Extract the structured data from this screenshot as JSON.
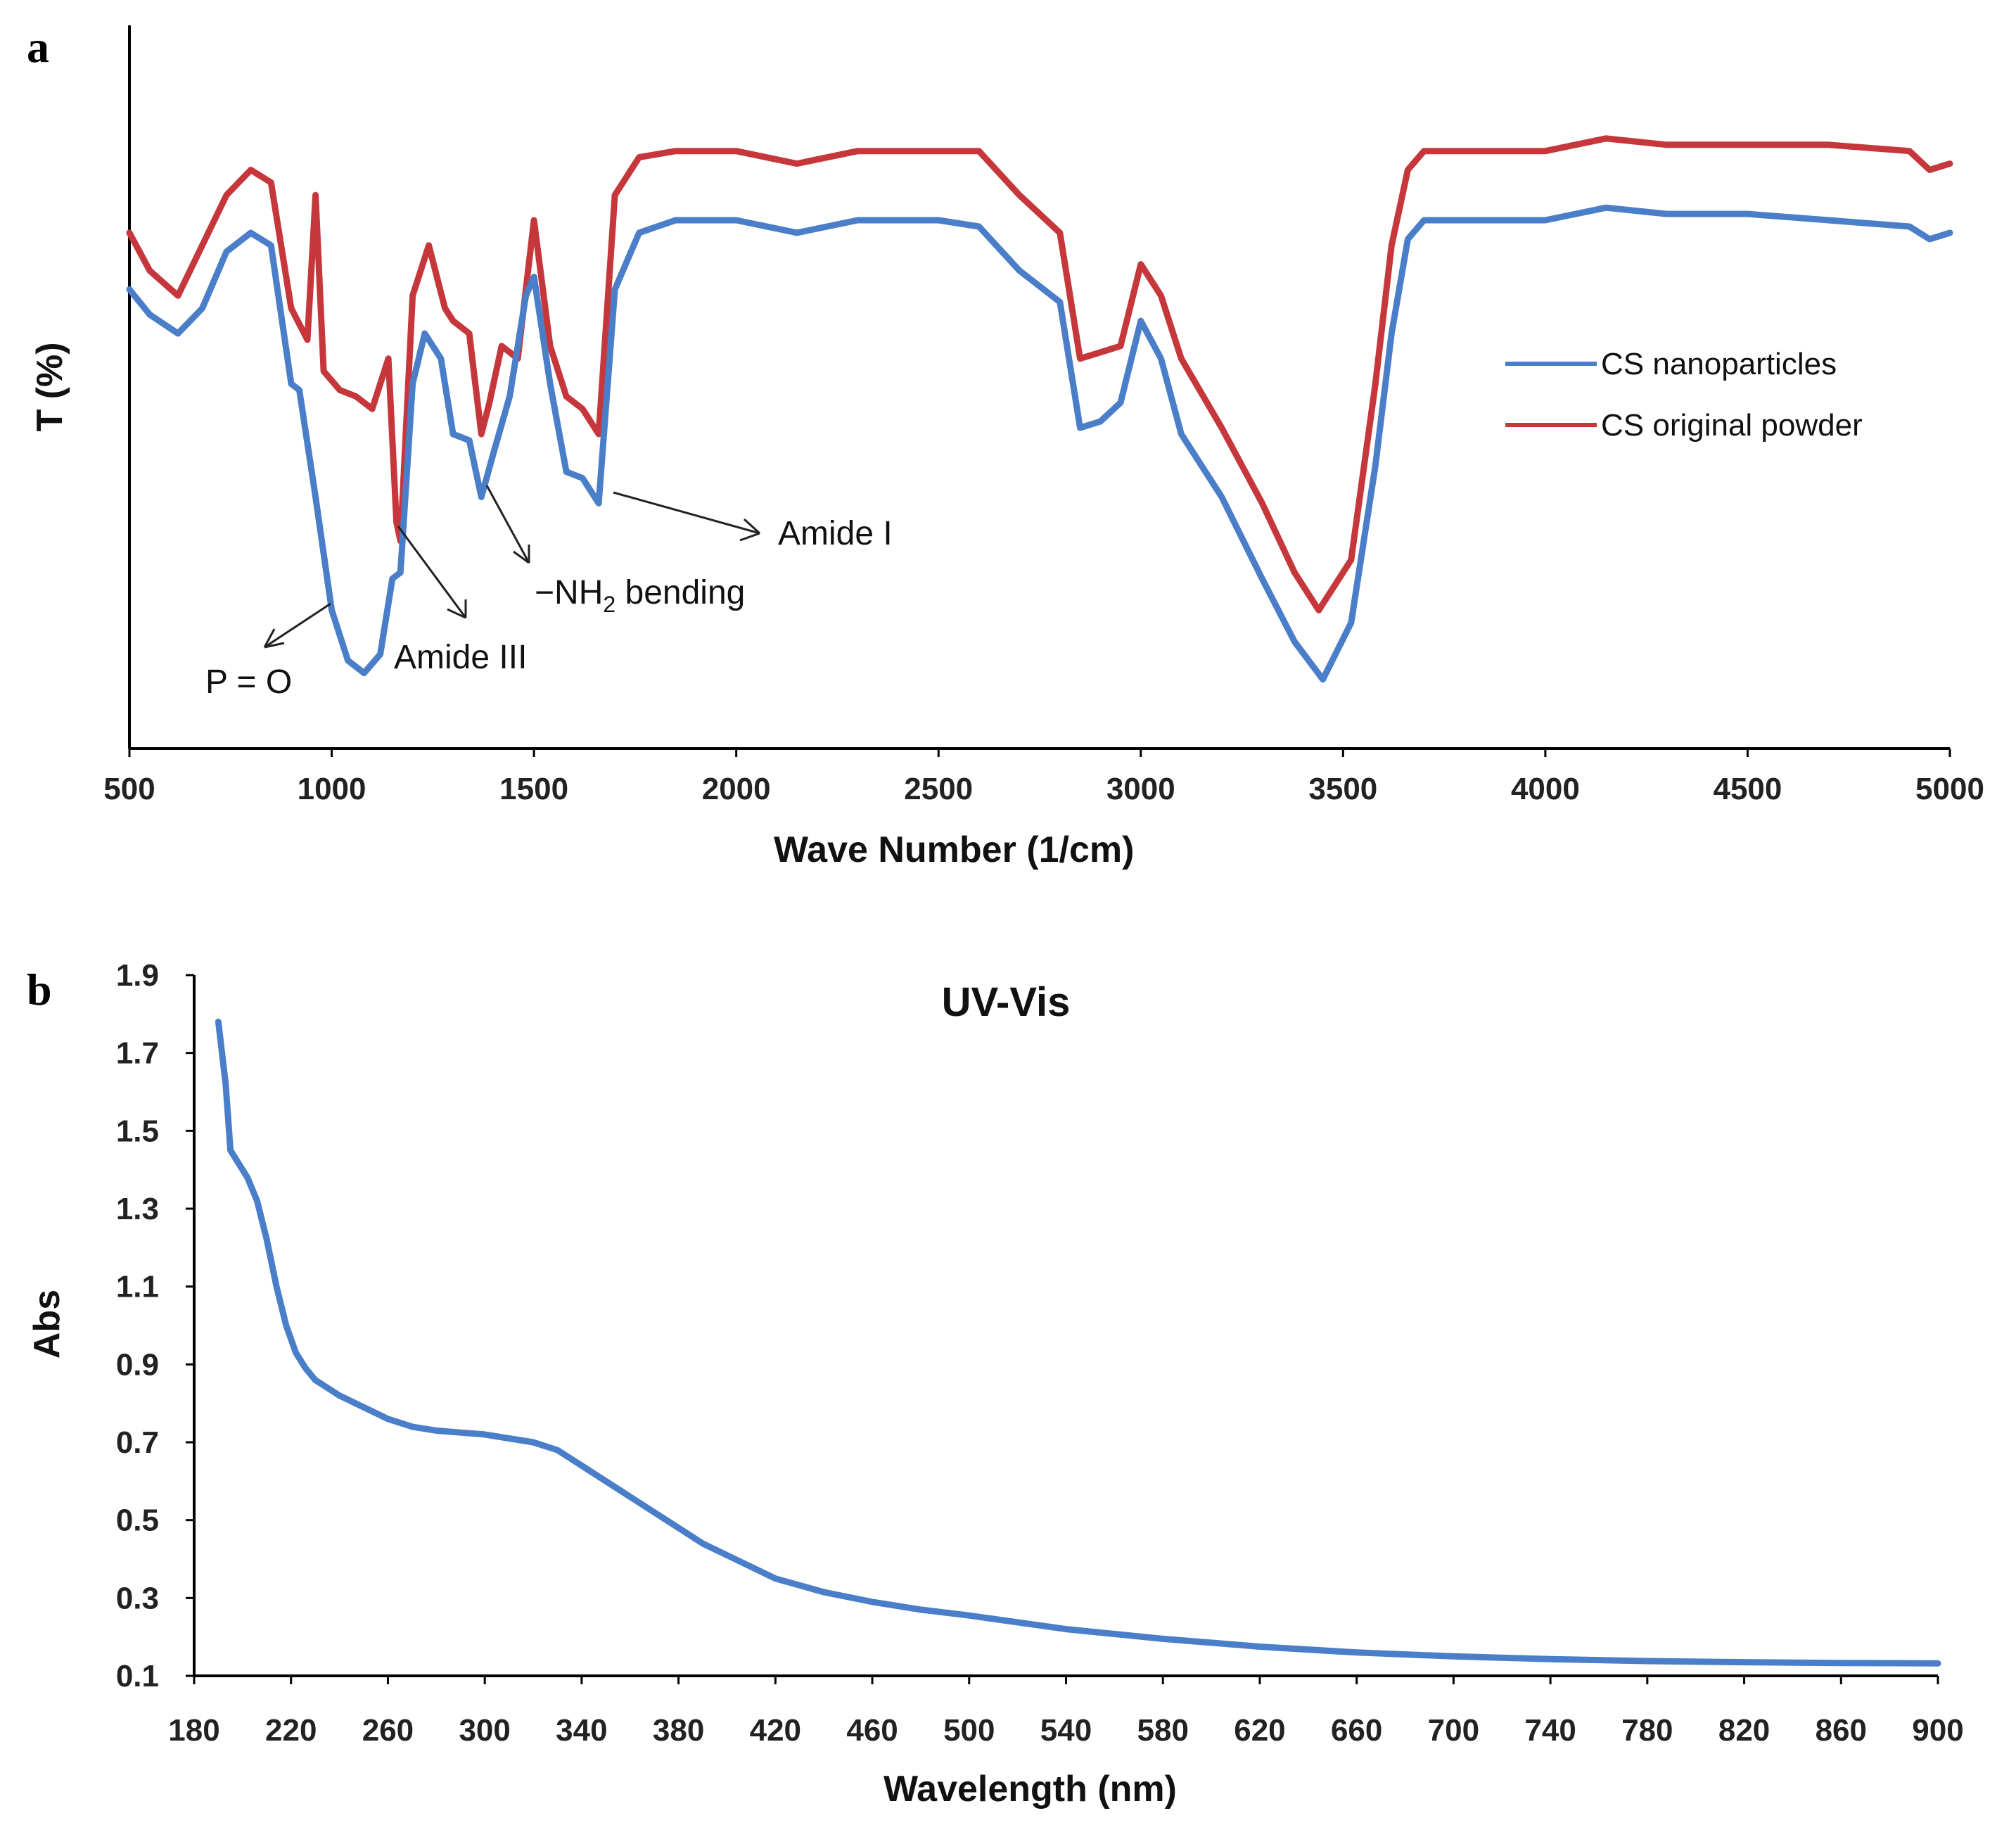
{
  "chart_data": [
    {
      "panel_label": "a",
      "type": "line",
      "xlabel": "Wave Number (1/cm)",
      "ylabel": "T (%)",
      "xlim": [
        500,
        5000
      ],
      "ylim": [
        0,
        100
      ],
      "x_ticks": [
        500,
        1000,
        1500,
        2000,
        2500,
        3000,
        3500,
        4000,
        4500,
        5000
      ],
      "y_ticks_shown": false,
      "legend_position": "right-middle",
      "series": [
        {
          "name": "CS nanoparticles",
          "color": "#4a7ec9",
          "x": [
            500,
            550,
            620,
            680,
            740,
            800,
            850,
            900,
            920,
            960,
            1000,
            1040,
            1080,
            1120,
            1150,
            1170,
            1200,
            1230,
            1270,
            1300,
            1340,
            1370,
            1400,
            1440,
            1480,
            1500,
            1540,
            1580,
            1620,
            1660,
            1700,
            1760,
            1850,
            2000,
            2150,
            2300,
            2500,
            2600,
            2700,
            2800,
            2850,
            2900,
            2950,
            3000,
            3050,
            3100,
            3200,
            3300,
            3380,
            3450,
            3520,
            3580,
            3620,
            3660,
            3700,
            3800,
            4000,
            4150,
            4300,
            4500,
            4700,
            4900,
            4950,
            5000
          ],
          "y": [
            73,
            69,
            66,
            70,
            79,
            82,
            80,
            58,
            57,
            40,
            22,
            14,
            12,
            15,
            27,
            28,
            58,
            66,
            62,
            50,
            49,
            40,
            47,
            56,
            72,
            75,
            58,
            44,
            43,
            39,
            73,
            82,
            84,
            84,
            82,
            84,
            84,
            83,
            76,
            71,
            51,
            52,
            55,
            68,
            62,
            50,
            40,
            27,
            17,
            11,
            20,
            45,
            66,
            81,
            84,
            84,
            84,
            86,
            85,
            85,
            84,
            83,
            81,
            82
          ]
        },
        {
          "name": "CS original powder",
          "color": "#c6373b",
          "x": [
            500,
            550,
            620,
            680,
            740,
            800,
            850,
            900,
            940,
            960,
            980,
            1020,
            1060,
            1100,
            1140,
            1160,
            1170,
            1200,
            1240,
            1280,
            1300,
            1340,
            1370,
            1390,
            1420,
            1460,
            1500,
            1540,
            1580,
            1620,
            1660,
            1700,
            1760,
            1850,
            2000,
            2150,
            2300,
            2500,
            2600,
            2700,
            2800,
            2850,
            2900,
            2950,
            3000,
            3050,
            3100,
            3200,
            3300,
            3380,
            3440,
            3520,
            3580,
            3620,
            3660,
            3700,
            3800,
            4000,
            4150,
            4300,
            4500,
            4700,
            4900,
            4950,
            5000
          ],
          "y": [
            82,
            76,
            72,
            80,
            88,
            92,
            90,
            70,
            65,
            88,
            60,
            57,
            56,
            54,
            62,
            36,
            33,
            72,
            80,
            70,
            68,
            66,
            50,
            55,
            64,
            62,
            84,
            64,
            56,
            54,
            50,
            88,
            94,
            95,
            95,
            93,
            95,
            95,
            95,
            88,
            82,
            62,
            63,
            64,
            77,
            72,
            62,
            51,
            39,
            28,
            22,
            30,
            58,
            80,
            92,
            95,
            95,
            95,
            97,
            96,
            96,
            96,
            95,
            92,
            93
          ]
        }
      ],
      "annotations": [
        {
          "text": "P = O",
          "x": 1080
        },
        {
          "text": "Amide III",
          "x": 1165
        },
        {
          "text": "−NH",
          "subscript": "2",
          "suffix": " bending",
          "x": 1380
        },
        {
          "text": "Amide I",
          "x": 1660
        }
      ]
    },
    {
      "panel_label": "b",
      "type": "line",
      "title": "UV-Vis",
      "xlabel": "Wavelength (nm)",
      "ylabel": "Abs",
      "xlim": [
        180,
        900
      ],
      "ylim": [
        0.1,
        1.9
      ],
      "x_ticks": [
        180,
        220,
        260,
        300,
        340,
        380,
        420,
        460,
        500,
        540,
        580,
        620,
        660,
        700,
        740,
        780,
        820,
        860,
        900
      ],
      "y_ticks": [
        "0.1",
        "0.3",
        "0.5",
        "0.7",
        "0.9",
        "1.1",
        "1.3",
        "1.5",
        "1.7",
        "1.9"
      ],
      "series": [
        {
          "name": "UV-Vis absorbance",
          "color": "#4a7ec9",
          "x": [
            190,
            193,
            195,
            198,
            202,
            206,
            210,
            214,
            218,
            222,
            226,
            230,
            240,
            250,
            260,
            270,
            280,
            290,
            300,
            310,
            320,
            330,
            340,
            350,
            360,
            370,
            380,
            390,
            400,
            420,
            440,
            460,
            480,
            500,
            540,
            580,
            620,
            660,
            700,
            740,
            780,
            820,
            860,
            900
          ],
          "y": [
            1.78,
            1.62,
            1.45,
            1.42,
            1.38,
            1.32,
            1.22,
            1.1,
            1.0,
            0.93,
            0.89,
            0.86,
            0.82,
            0.79,
            0.76,
            0.74,
            0.73,
            0.725,
            0.72,
            0.71,
            0.7,
            0.68,
            0.64,
            0.6,
            0.56,
            0.52,
            0.48,
            0.44,
            0.41,
            0.35,
            0.315,
            0.29,
            0.27,
            0.255,
            0.22,
            0.195,
            0.175,
            0.16,
            0.15,
            0.143,
            0.138,
            0.135,
            0.133,
            0.132
          ]
        }
      ]
    }
  ]
}
